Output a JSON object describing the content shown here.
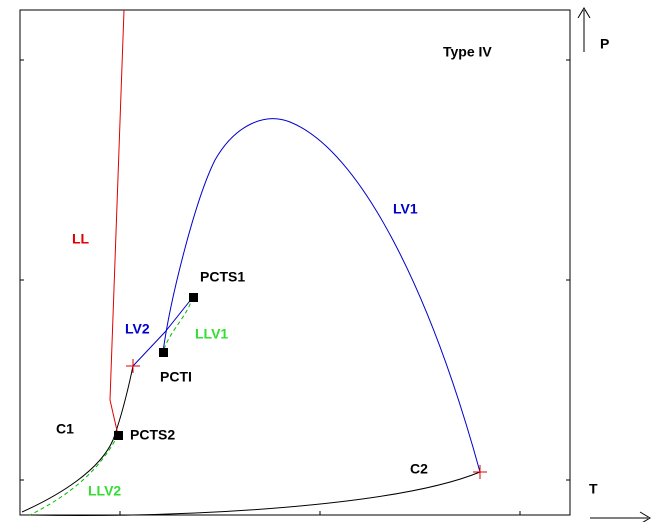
{
  "title": "Type IV",
  "axes": {
    "y": "P",
    "x": "T"
  },
  "curves": {
    "ll": "LL",
    "lv1": "LV1",
    "lv2": "LV2",
    "llv1": "LLV1",
    "llv2": "LLV2",
    "c1": "C1",
    "c2": "C2"
  },
  "points": {
    "pcts1": "PCTS1",
    "pcts2": "PCTS2",
    "pcti": "PCTI"
  }
}
